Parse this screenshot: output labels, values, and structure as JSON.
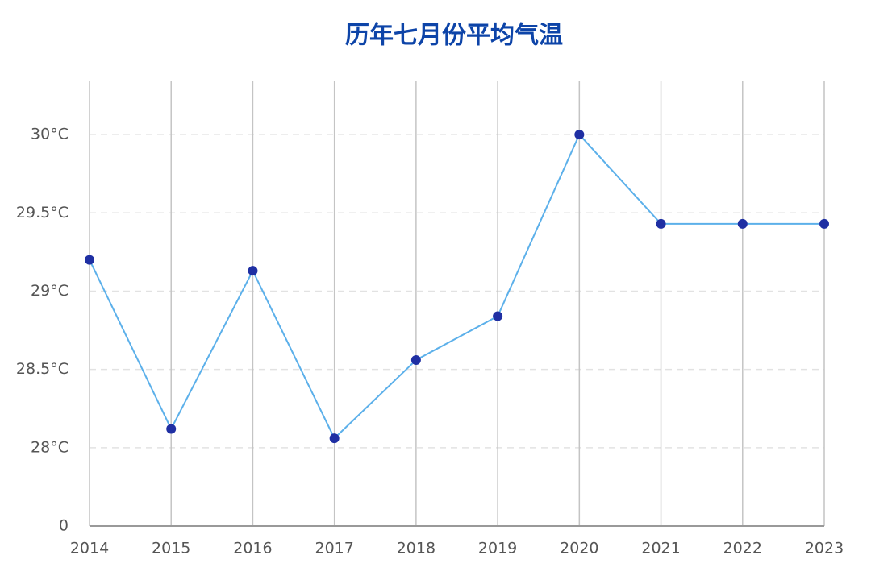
{
  "chart_data": {
    "type": "line",
    "title": "历年七月份平均气温",
    "categories": [
      "2014",
      "2015",
      "2016",
      "2017",
      "2018",
      "2019",
      "2020",
      "2021",
      "2022",
      "2023"
    ],
    "series": [
      {
        "color": "#5cb0ea",
        "marker_color": "#1f2fa3",
        "values": [
          29.2,
          28.12,
          29.13,
          28.06,
          28.56,
          28.84,
          30.0,
          29.43,
          29.43,
          29.43
        ]
      }
    ],
    "ylim": [
      0,
      30.34
    ],
    "y_break": [
      0,
      27.5
    ],
    "yticks": [
      0,
      {
        "value": 28,
        "label": "28°C"
      },
      {
        "value": 28.5,
        "label": "28.5°C"
      },
      {
        "value": 29,
        "label": "29°C"
      },
      {
        "value": 29.5,
        "label": "29.5°C"
      },
      {
        "value": 30,
        "label": "30°C"
      }
    ],
    "grid": true
  }
}
